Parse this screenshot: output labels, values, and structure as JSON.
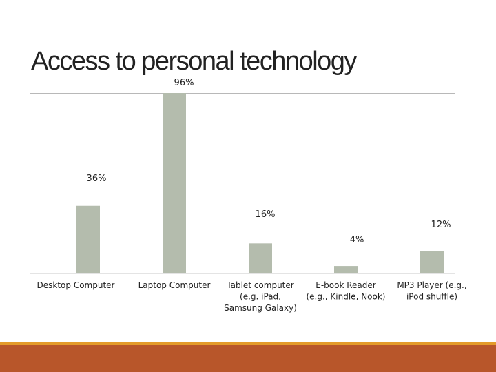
{
  "title": "Access to personal technology",
  "colors": {
    "bar": "#b4bcad",
    "footer_band": "#b8562a",
    "footer_stripe": "#e49b2a"
  },
  "chart_data": {
    "type": "bar",
    "categories": [
      [
        "Desktop Computer"
      ],
      [
        "Laptop Computer"
      ],
      [
        "Tablet computer",
        "(e.g. iPad,",
        "Samsung Galaxy)"
      ],
      [
        "E-book Reader",
        "(e.g., Kindle, Nook)"
      ],
      [
        "MP3 Player (e.g.,",
        "iPod shuffle)"
      ]
    ],
    "values": [
      36,
      96,
      16,
      4,
      12
    ],
    "value_labels": [
      "36%",
      "96%",
      "16%",
      "4%",
      "12%"
    ],
    "ylim": [
      0,
      96
    ],
    "grid": false,
    "xlabel": "",
    "ylabel": ""
  }
}
